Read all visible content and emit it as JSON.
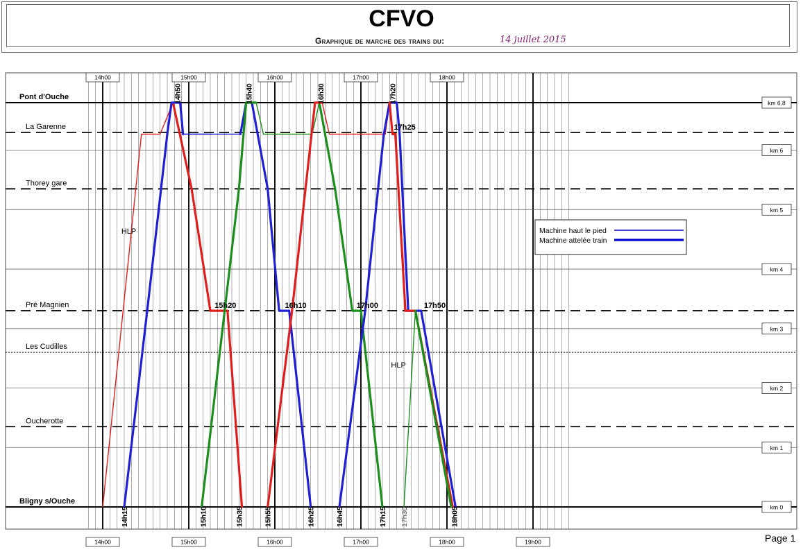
{
  "header": {
    "title": "CFVO",
    "subtitle": "Graphique de marche des trains du:",
    "date": "14 juillet 2015"
  },
  "page_label": "Page 1",
  "chart_data": {
    "type": "line",
    "title": "CFVO",
    "x_unit": "time of day",
    "x_range_minutes": [
      830,
      1170
    ],
    "y_range_km": [
      0,
      6.8
    ],
    "time_ticks": [
      "14h00",
      "15h00",
      "16h00",
      "17h00",
      "18h00",
      "19h00"
    ],
    "time_ticks_minutes": [
      840,
      900,
      960,
      1020,
      1080,
      1140
    ],
    "km_ticks": [
      {
        "label": "km 6,8",
        "km": 6.8
      },
      {
        "label": "km 6",
        "km": 6
      },
      {
        "label": "km 5",
        "km": 5
      },
      {
        "label": "km 4",
        "km": 4
      },
      {
        "label": "km 3",
        "km": 3
      },
      {
        "label": "km 2",
        "km": 2
      },
      {
        "label": "km 1",
        "km": 1
      },
      {
        "label": "km 0",
        "km": 0
      }
    ],
    "stations": [
      {
        "name": "Pont d'Ouche",
        "km": 6.8,
        "bold": true,
        "style": "solid"
      },
      {
        "name": "La Garenne",
        "km": 6.3,
        "bold": false,
        "style": "dashed"
      },
      {
        "name": "Thorey gare",
        "km": 5.35,
        "bold": false,
        "style": "dashed"
      },
      {
        "name": "Pré Magnien",
        "km": 3.3,
        "bold": false,
        "style": "dashed"
      },
      {
        "name": "Les Cudilles",
        "km": 2.6,
        "bold": false,
        "style": "dotted"
      },
      {
        "name": "Oucherotte",
        "km": 1.35,
        "bold": false,
        "style": "dashed"
      },
      {
        "name": "Bligny s/Ouche",
        "km": 0,
        "bold": true,
        "style": "solid"
      }
    ],
    "time_annotations": [
      {
        "text": "14h15",
        "t": 855,
        "pos": "bottom",
        "color": "#000"
      },
      {
        "text": "15h10",
        "t": 910,
        "pos": "bottom",
        "color": "#000"
      },
      {
        "text": "15h35",
        "t": 935,
        "pos": "bottom",
        "color": "#000"
      },
      {
        "text": "15h55",
        "t": 955,
        "pos": "bottom",
        "color": "#000"
      },
      {
        "text": "16h25",
        "t": 985,
        "pos": "bottom",
        "color": "#000"
      },
      {
        "text": "16h45",
        "t": 1005,
        "pos": "bottom",
        "color": "#000"
      },
      {
        "text": "17h15",
        "t": 1035,
        "pos": "bottom",
        "color": "#000"
      },
      {
        "text": "17h30",
        "t": 1050,
        "pos": "bottom",
        "color": "#555"
      },
      {
        "text": "18h05",
        "t": 1085,
        "pos": "bottom",
        "color": "#000"
      },
      {
        "text": "14h50",
        "t": 890,
        "pos": "top",
        "color": "#000"
      },
      {
        "text": "15h40",
        "t": 940,
        "pos": "top",
        "color": "#000"
      },
      {
        "text": "16h30",
        "t": 990,
        "pos": "top",
        "color": "#000"
      },
      {
        "text": "17h20",
        "t": 1040,
        "pos": "top",
        "color": "#000"
      }
    ],
    "inline_annotations": [
      {
        "text": "15h20",
        "t": 918,
        "km": 3.3
      },
      {
        "text": "16h10",
        "t": 967,
        "km": 3.3
      },
      {
        "text": "17h00",
        "t": 1017,
        "km": 3.3
      },
      {
        "text": "17h50",
        "t": 1064,
        "km": 3.3
      },
      {
        "text": "17h25",
        "t": 1043,
        "km": 6.3
      },
      {
        "text": "HLP",
        "t": 853,
        "km": 4.55
      },
      {
        "text": "HLP",
        "t": 1041,
        "km": 2.3
      }
    ],
    "legend": {
      "placement": "right-middle",
      "entries": [
        {
          "label": "Machine haut le pied",
          "style": "thin",
          "color": "#0000cc"
        },
        {
          "label": "Machine attelée train",
          "style": "thick",
          "color": "#0000cc"
        }
      ]
    },
    "series": [
      {
        "color": "#e11d1d",
        "style": "thin",
        "points": [
          [
            840,
            0
          ],
          [
            867,
            6.27
          ],
          [
            880,
            6.27
          ],
          [
            889,
            6.8
          ]
        ]
      },
      {
        "color": "#e11d1d",
        "style": "thick",
        "points": [
          [
            889,
            6.8
          ],
          [
            902,
            5.35
          ],
          [
            915,
            3.3
          ],
          [
            927,
            3.3
          ],
          [
            937,
            0
          ]
        ]
      },
      {
        "color": "#1f1fd6",
        "style": "thick",
        "points": [
          [
            855,
            0
          ],
          [
            871,
            3.3
          ],
          [
            885,
            6.27
          ],
          [
            888,
            6.8
          ],
          [
            894,
            6.8
          ],
          [
            896,
            6.27
          ]
        ]
      },
      {
        "color": "#1f1fd6",
        "style": "thin",
        "points": [
          [
            896,
            6.27
          ],
          [
            915,
            6.27
          ],
          [
            916,
            6.27
          ]
        ]
      },
      {
        "color": "#1f1fd6",
        "style": "thin",
        "points": [
          [
            896,
            6.27
          ],
          [
            936,
            6.27
          ]
        ]
      },
      {
        "color": "#1f1fd6",
        "style": "thick",
        "points": [
          [
            936,
            6.27
          ],
          [
            940,
            6.8
          ],
          [
            944,
            6.8
          ],
          [
            955,
            5.35
          ],
          [
            963,
            3.3
          ],
          [
            970,
            3.3
          ],
          [
            985,
            0
          ]
        ]
      },
      {
        "color": "#1b8f1b",
        "style": "thick",
        "points": [
          [
            909,
            0
          ],
          [
            935,
            5.35
          ],
          [
            940,
            6.8
          ],
          [
            947,
            6.8
          ]
        ]
      },
      {
        "color": "#1b8f1b",
        "style": "thin",
        "points": [
          [
            947,
            6.8
          ],
          [
            952,
            6.27
          ],
          [
            986,
            6.27
          ],
          [
            991,
            6.8
          ]
        ]
      },
      {
        "color": "#1b8f1b",
        "style": "thick",
        "points": [
          [
            991,
            6.8
          ],
          [
            1002,
            5.35
          ],
          [
            1014,
            3.3
          ],
          [
            1020,
            3.3
          ],
          [
            1035,
            0
          ]
        ]
      },
      {
        "color": "#e11d1d",
        "style": "thick",
        "points": [
          [
            955,
            0
          ],
          [
            972,
            3.3
          ],
          [
            988,
            6.8
          ],
          [
            993,
            6.8
          ]
        ]
      },
      {
        "color": "#e11d1d",
        "style": "thin",
        "points": [
          [
            993,
            6.8
          ],
          [
            998,
            6.27
          ],
          [
            1037,
            6.27
          ],
          [
            1040,
            6.8
          ]
        ]
      },
      {
        "color": "#1f1fd6",
        "style": "thick",
        "points": [
          [
            1005,
            0
          ],
          [
            1023,
            3.3
          ],
          [
            1036,
            6.27
          ],
          [
            1040,
            6.8
          ],
          [
            1045,
            6.8
          ],
          [
            1047,
            6.27
          ],
          [
            1053,
            3.3
          ],
          [
            1062,
            3.3
          ],
          [
            1086,
            0
          ]
        ]
      },
      {
        "color": "#e11d1d",
        "style": "thick",
        "points": [
          [
            1040,
            6.8
          ],
          [
            1042,
            6.27
          ],
          [
            1044,
            6.27
          ],
          [
            1051,
            3.3
          ],
          [
            1058,
            3.3
          ],
          [
            1084,
            0
          ]
        ]
      },
      {
        "color": "#1b8f1b",
        "style": "thin",
        "points": [
          [
            1050,
            0
          ],
          [
            1058,
            3.3
          ]
        ]
      },
      {
        "color": "#1b8f1b",
        "style": "thick",
        "points": [
          [
            1058,
            3.3
          ],
          [
            1083,
            0
          ]
        ]
      }
    ]
  }
}
